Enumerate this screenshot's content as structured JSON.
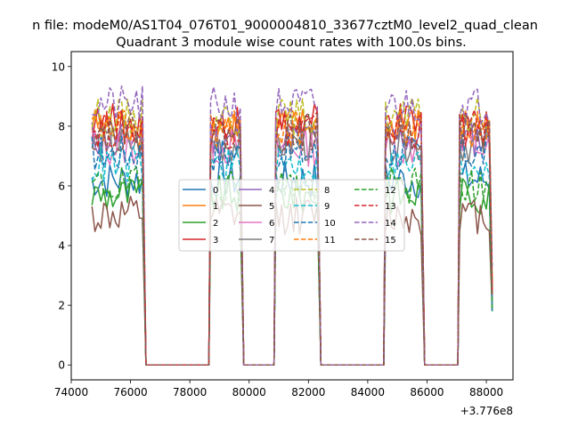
{
  "chart_data": {
    "type": "line",
    "suptitle": "n file: modeM0/AS1T04_076T01_9000004810_33677cztM0_level2_quad_clean",
    "title": "Quadrant 3 module wise count rates with 100.0s bins.",
    "xlabel": "",
    "ylabel": "",
    "x_offset_label": "+3.776e8",
    "xlim": [
      74000,
      88900
    ],
    "ylim": [
      -0.5,
      10.5
    ],
    "xticks": [
      74000,
      76000,
      78000,
      80000,
      82000,
      84000,
      86000,
      88000
    ],
    "xtick_labels": [
      "74000",
      "76000",
      "78000",
      "80000",
      "82000",
      "84000",
      "86000",
      "88000"
    ],
    "yticks": [
      0,
      2,
      4,
      6,
      8,
      10
    ],
    "ytick_labels": [
      "0",
      "2",
      "4",
      "6",
      "8",
      "10"
    ],
    "grid": false,
    "legend_location": "center",
    "legend_columns": 4,
    "on_segments": [
      [
        74700,
        76400
      ],
      [
        78700,
        79700
      ],
      [
        80900,
        82300
      ],
      [
        84600,
        85800
      ],
      [
        87100,
        88200
      ]
    ],
    "series": [
      {
        "name": "0",
        "color": "#1f77b4",
        "style": "solid",
        "level": 6.2
      },
      {
        "name": "1",
        "color": "#ff7f0e",
        "style": "solid",
        "level": 8.0
      },
      {
        "name": "2",
        "color": "#2ca02c",
        "style": "solid",
        "level": 5.7
      },
      {
        "name": "3",
        "color": "#d62728",
        "style": "solid",
        "level": 8.1
      },
      {
        "name": "4",
        "color": "#9467bd",
        "style": "solid",
        "level": 7.6
      },
      {
        "name": "5",
        "color": "#8c564b",
        "style": "solid",
        "level": 5.0
      },
      {
        "name": "6",
        "color": "#e377c2",
        "style": "solid",
        "level": 7.3
      },
      {
        "name": "7",
        "color": "#7f7f7f",
        "style": "solid",
        "level": 7.4
      },
      {
        "name": "8",
        "color": "#bcbd22",
        "style": "dashed",
        "level": 8.3
      },
      {
        "name": "9",
        "color": "#17becf",
        "style": "dashed",
        "level": 6.7
      },
      {
        "name": "10",
        "color": "#1f77b4",
        "style": "dashed",
        "level": 7.1
      },
      {
        "name": "11",
        "color": "#ff7f0e",
        "style": "dashed",
        "level": 7.9
      },
      {
        "name": "12",
        "color": "#2ca02c",
        "style": "dashed",
        "level": 6.0
      },
      {
        "name": "13",
        "color": "#d62728",
        "style": "dashed",
        "level": 7.9
      },
      {
        "name": "14",
        "color": "#9467bd",
        "style": "dashed",
        "level": 8.7
      },
      {
        "name": "15",
        "color": "#8c564b",
        "style": "dashed",
        "level": 7.8
      }
    ]
  }
}
